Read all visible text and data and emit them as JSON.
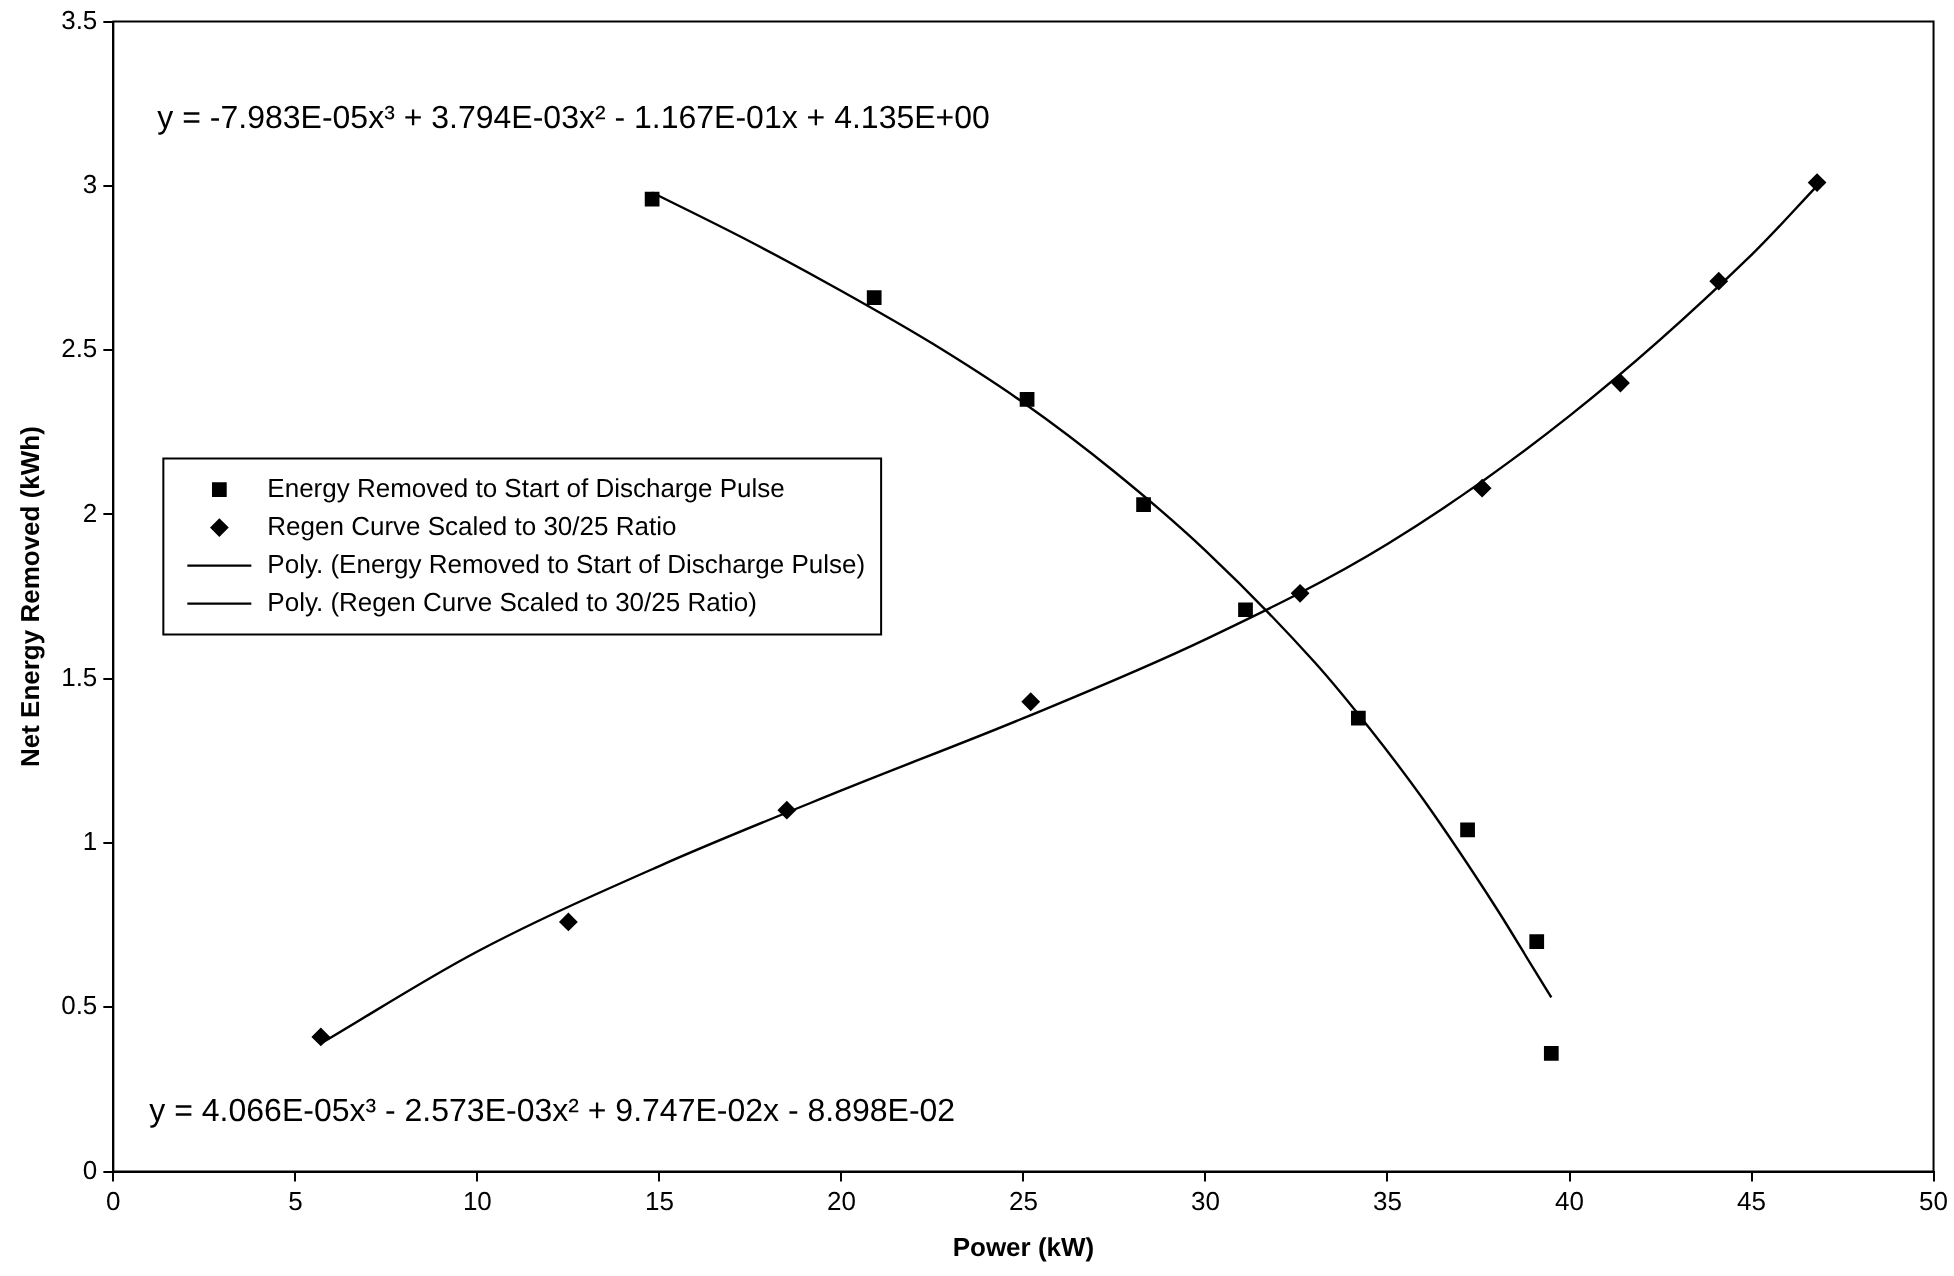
{
  "chart_data": {
    "type": "scatter",
    "xlabel": "Power (kW)",
    "ylabel": "Net Energy Removed (kWh)",
    "xlim": [
      0,
      50
    ],
    "xticks": [
      0,
      5,
      10,
      15,
      20,
      25,
      30,
      35,
      40,
      45,
      50
    ],
    "ylim": [
      0,
      3.5
    ],
    "yticks": [
      0,
      0.5,
      1,
      1.5,
      2,
      2.5,
      3,
      3.5
    ],
    "grid": false,
    "legend": "left",
    "series": [
      {
        "name": "Energy Removed to Start of Discharge Pulse",
        "type": "scatter",
        "marker": "square",
        "color": "#000000",
        "x": [
          14.8,
          20.9,
          25.1,
          28.3,
          31.1,
          34.2,
          37.2,
          39.1,
          39.5
        ],
        "values": [
          2.96,
          2.66,
          2.35,
          2.03,
          1.71,
          1.38,
          1.04,
          0.7,
          0.36
        ]
      },
      {
        "name": "Regen Curve Scaled to 30/25 Ratio",
        "type": "scatter",
        "marker": "diamond",
        "color": "#000000",
        "x": [
          5.7,
          12.5,
          18.5,
          25.2,
          32.6,
          37.6,
          41.4,
          44.1,
          46.8
        ],
        "values": [
          0.41,
          0.76,
          1.1,
          1.43,
          1.76,
          2.08,
          2.4,
          2.71,
          3.01
        ]
      },
      {
        "name": "Poly. (Energy Removed to Start of Discharge Pulse)",
        "type": "line",
        "marker": "none",
        "line_style": "solid",
        "color": "#000000",
        "x": [
          14.8,
          17.5,
          20,
          22.5,
          25,
          27.5,
          30,
          33,
          34.5,
          36,
          38,
          39,
          39.5
        ],
        "values": [
          2.98,
          2.83,
          2.68,
          2.52,
          2.34,
          2.13,
          1.89,
          1.55,
          1.35,
          1.13,
          0.8,
          0.62,
          0.53
        ]
      },
      {
        "name": "Poly. (Regen Curve Scaled to 30/25 Ratio)",
        "type": "line",
        "marker": "none",
        "line_style": "solid",
        "color": "#000000",
        "x": [
          5.7,
          10,
          15,
          20,
          25,
          30,
          35,
          40,
          45,
          46.8
        ],
        "values": [
          0.39,
          0.67,
          0.93,
          1.16,
          1.38,
          1.62,
          1.91,
          2.3,
          2.79,
          3.0
        ]
      }
    ],
    "annotations": [
      "y = -7.983E-05x³ + 3.794E-03x² - 1.167E-01x + 4.135E+00",
      "y = 4.066E-05x³ - 2.573E-03x² + 9.747E-02x - 8.898E-02"
    ]
  }
}
